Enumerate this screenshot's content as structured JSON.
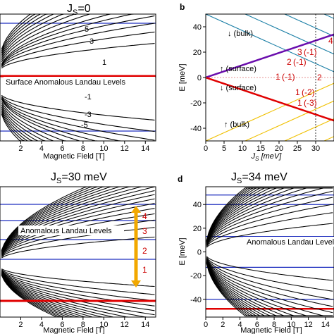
{
  "panels": {
    "a": {
      "title": "J_S=0",
      "xlabel": "Magnetic Field [T]",
      "xticks": [
        "2",
        "4",
        "6",
        "8",
        "10",
        "12",
        "14"
      ],
      "annotations": [
        "5",
        "3",
        "1",
        "Surface Anomalous Landau Levels",
        "-1",
        "-3",
        "-5"
      ]
    },
    "b": {
      "letter": "b",
      "ylabel": "E [meV]",
      "xlabel": "J_S [meV]",
      "xticks": [
        "0",
        "5",
        "10",
        "15",
        "20",
        "25",
        "30"
      ],
      "yticks": [
        "40",
        "20",
        "0",
        "-20",
        "-40"
      ],
      "annotations": [
        "↓ (bulk)",
        "↑ (surface)",
        "↓ (surface)",
        "↑ (bulk)"
      ],
      "level_labels": [
        "3",
        "(-1)",
        "2",
        "(-1)",
        "1",
        "(-1)",
        "1",
        "(-2)",
        "1",
        "(-3)",
        "2",
        "4"
      ]
    },
    "c": {
      "title": "J_S=30 meV",
      "xlabel": "Magnetic Field [T]",
      "xticks": [
        "2",
        "4",
        "6",
        "8",
        "10",
        "12",
        "14"
      ],
      "annotations": [
        "Anomalous Landau Levels",
        "4",
        "3",
        "2",
        "1"
      ]
    },
    "d": {
      "letter": "d",
      "title": "J_S=34 meV",
      "ylabel": "E [meV]",
      "xlabel": "Magnetic Field [T]",
      "xticks": [
        "0",
        "2",
        "4",
        "6",
        "8",
        "10",
        "12",
        "14"
      ],
      "yticks": [
        "40",
        "20",
        "0",
        "-20",
        "-40"
      ],
      "annotations": [
        "Anomalous Landau Levels"
      ]
    }
  },
  "colors": {
    "red": "#e00000",
    "blue": "#1f2fbf",
    "purple": "#6a0dad",
    "orange": "#f2a800",
    "teal": "#1b7fa6",
    "gold": "#f0c000"
  },
  "chart_data": [
    {
      "type": "line",
      "panel": "a",
      "title": "J_S=0",
      "xlabel": "Magnetic Field [T]",
      "xlim": [
        0,
        15
      ],
      "series_kind": "Landau levels, symmetric about E=0",
      "levels": [
        5,
        3,
        1,
        -1,
        -3,
        -5
      ]
    },
    {
      "type": "line",
      "panel": "b",
      "xlabel": "J_S [meV]",
      "ylabel": "E [meV]",
      "xlim": [
        0,
        35
      ],
      "ylim": [
        -50,
        50
      ],
      "series": [
        {
          "name": "↑ (surface)",
          "points": [
            [
              0,
              0
            ],
            [
              35,
              34
            ]
          ]
        },
        {
          "name": "↓ (surface)",
          "points": [
            [
              0,
              0
            ],
            [
              35,
              -34
            ]
          ]
        }
      ],
      "vertical_dotted_line_x": 30
    },
    {
      "type": "line",
      "panel": "c",
      "title": "J_S=30 meV",
      "xlabel": "Magnetic Field [T]",
      "xlim": [
        0,
        15
      ],
      "levels": [
        4,
        3,
        2,
        1
      ]
    },
    {
      "type": "line",
      "panel": "d",
      "title": "J_S=34 meV",
      "xlabel": "Magnetic Field [T]",
      "ylabel": "E [meV]",
      "xlim": [
        0,
        15
      ],
      "ylim": [
        -55,
        55
      ],
      "horizontal_lines_y": [
        -48,
        -40,
        -13,
        13,
        40,
        48
      ]
    }
  ]
}
